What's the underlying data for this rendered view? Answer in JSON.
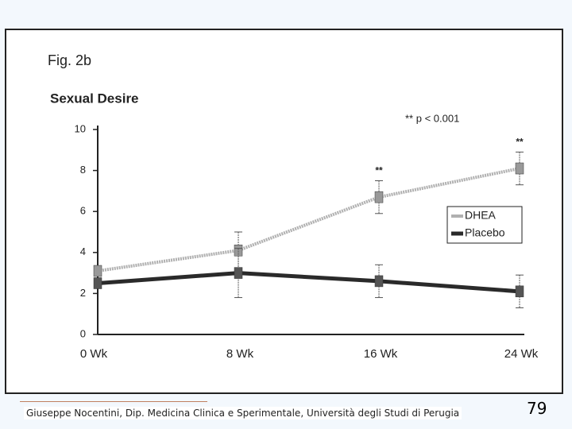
{
  "chart_data": {
    "type": "line",
    "figure_label": "Fig. 2b",
    "title": "Sexual Desire",
    "annotation": "** p < 0.001",
    "categories": [
      "0 Wk",
      "8 Wk",
      "16 Wk",
      "24 Wk"
    ],
    "series": [
      {
        "name": "DHEA",
        "color": "#b0b0b0",
        "values": [
          3.1,
          4.1,
          6.7,
          8.1
        ],
        "errors": [
          null,
          0.9,
          0.8,
          0.8
        ],
        "markers": [
          null,
          null,
          "**",
          "**"
        ]
      },
      {
        "name": "Placebo",
        "color": "#2a2a2a",
        "values": [
          2.5,
          3.0,
          2.6,
          2.1
        ],
        "errors": [
          null,
          1.2,
          0.8,
          0.8
        ],
        "markers": [
          null,
          null,
          null,
          null
        ]
      }
    ],
    "ylim": [
      0,
      10
    ],
    "yticks": [
      0,
      2,
      4,
      6,
      8,
      10
    ],
    "grid": false,
    "legend": "right"
  },
  "footer": "Giuseppe Nocentini, Dip. Medicina Clinica e Sperimentale, Università degli Studi di Perugia",
  "page_number": "79"
}
